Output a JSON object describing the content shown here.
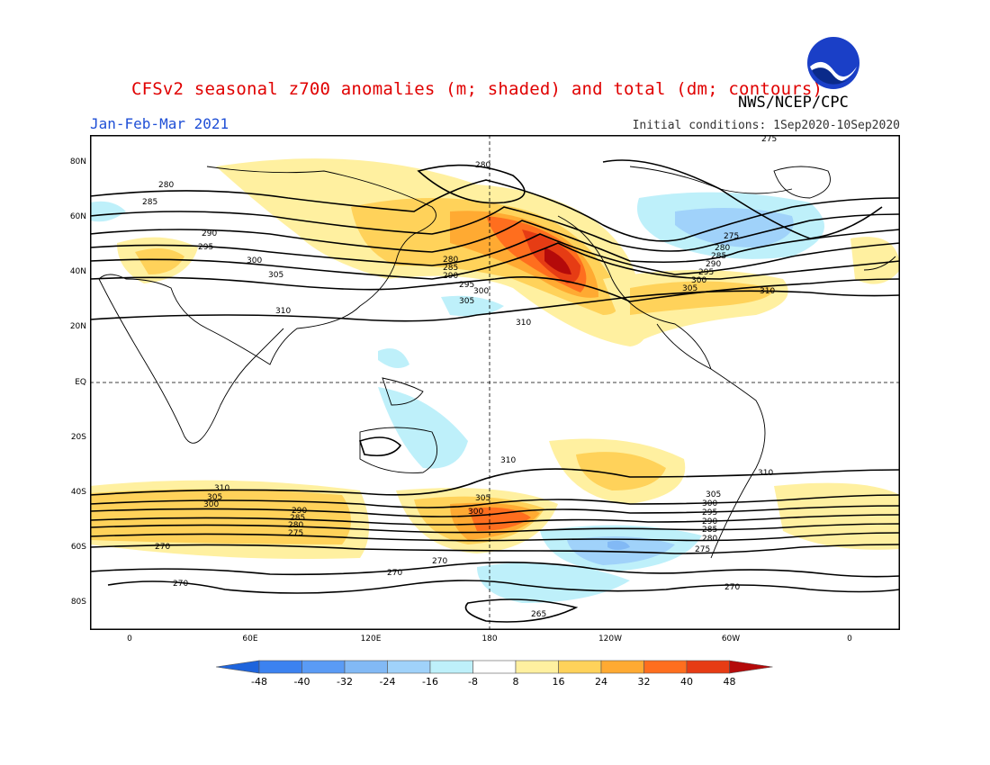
{
  "header": {
    "title": "CFSv2 seasonal z700 anomalies (m; shaded) and total (dm; contours)",
    "org": "NWS/NCEP/CPC",
    "period": "Jan-Feb-Mar 2021",
    "initial_conditions": "Initial conditions: 1Sep2020-10Sep2020",
    "logo_text": "NOAA"
  },
  "map": {
    "projection": "cylindrical equidistant",
    "lon_range": [
      -20,
      380
    ],
    "lat_range": [
      -90,
      90
    ],
    "lat_labels": [
      "80N",
      "60N",
      "40N",
      "20N",
      "EQ",
      "20S",
      "40S",
      "60S",
      "80S"
    ],
    "lon_labels": [
      "0",
      "60E",
      "120E",
      "180",
      "120W",
      "60W",
      "0"
    ],
    "contour_units": "dm",
    "anomaly_units": "m",
    "contour_labels": [
      "265",
      "270",
      "275",
      "280",
      "285",
      "290",
      "295",
      "300",
      "305",
      "310"
    ],
    "features": {
      "positive_max": "north pacific / western north america",
      "negative_min": "northeastern canada / greenland"
    }
  },
  "colorbar": {
    "ticks": [
      "-48",
      "-40",
      "-32",
      "-24",
      "-16",
      "-8",
      "8",
      "16",
      "24",
      "32",
      "40",
      "48"
    ],
    "colors": [
      "#1e64dc",
      "#3c82f0",
      "#5a9bf5",
      "#82b9f5",
      "#a0d2fa",
      "#bef0fa",
      "#ffffff",
      "#fff0a0",
      "#ffd25a",
      "#ffaa32",
      "#ff6e1e",
      "#e63c14",
      "#b40a0a"
    ]
  }
}
